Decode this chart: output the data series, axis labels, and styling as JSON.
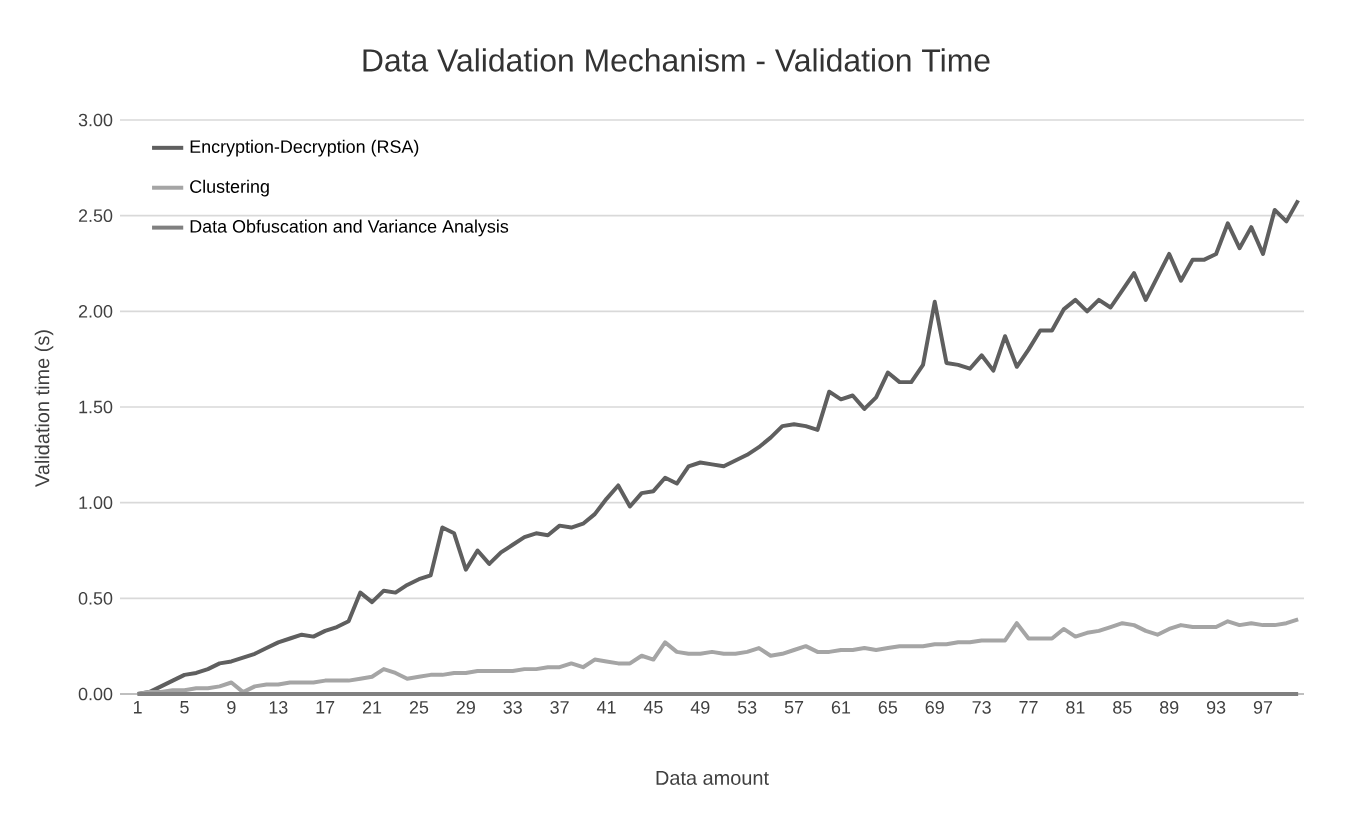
{
  "chart_data": {
    "type": "line",
    "title": "Data Validation Mechanism - Validation Time",
    "xlabel": "Data amount",
    "ylabel": "Validation time (s)",
    "categories": [
      "1",
      null,
      null,
      null,
      "5",
      null,
      null,
      null,
      "9",
      null,
      null,
      null,
      "13",
      null,
      null,
      null,
      "17",
      null,
      null,
      null,
      "21",
      null,
      null,
      null,
      "25",
      null,
      null,
      null,
      "29",
      null,
      null,
      null,
      "33",
      null,
      null,
      null,
      "37",
      null,
      null,
      null,
      "41",
      null,
      null,
      null,
      "45",
      null,
      null,
      null,
      "49",
      null,
      null,
      null,
      "53",
      null,
      null,
      null,
      "57",
      null,
      null,
      null,
      "61",
      null,
      null,
      null,
      "65",
      null,
      null,
      null,
      "69",
      null,
      null,
      null,
      "73",
      null,
      null,
      null,
      "77",
      null,
      null,
      null,
      "81",
      null,
      null,
      null,
      "85",
      null,
      null,
      null,
      "89",
      null,
      null,
      null,
      "93",
      null,
      null,
      null,
      "97",
      null,
      null,
      null
    ],
    "series": [
      {
        "name": "Encryption-Decryption (RSA)",
        "color": "#5f5f5f",
        "values": [
          0,
          0.01,
          0.04,
          0.07,
          0.1,
          0.11,
          0.13,
          0.16,
          0.17,
          0.19,
          0.21,
          0.24,
          0.27,
          0.29,
          0.31,
          0.3,
          0.33,
          0.35,
          0.38,
          0.53,
          0.48,
          0.54,
          0.53,
          0.57,
          0.6,
          0.62,
          0.87,
          0.84,
          0.65,
          0.75,
          0.68,
          0.74,
          0.78,
          0.82,
          0.84,
          0.83,
          0.88,
          0.87,
          0.89,
          0.94,
          1.02,
          1.09,
          0.98,
          1.05,
          1.06,
          1.13,
          1.1,
          1.19,
          1.21,
          1.2,
          1.19,
          1.22,
          1.25,
          1.29,
          1.34,
          1.4,
          1.41,
          1.4,
          1.38,
          1.58,
          1.54,
          1.56,
          1.49,
          1.55,
          1.68,
          1.63,
          1.63,
          1.72,
          2.05,
          1.73,
          1.72,
          1.7,
          1.77,
          1.69,
          1.87,
          1.71,
          1.8,
          1.9,
          1.9,
          2.01,
          2.06,
          2.0,
          2.06,
          2.02,
          2.11,
          2.2,
          2.06,
          2.18,
          2.3,
          2.16,
          2.27,
          2.27,
          2.3,
          2.46,
          2.33,
          2.44,
          2.3,
          2.53,
          2.47,
          2.58
        ]
      },
      {
        "name": "Clustering",
        "color": "#a5a5a5",
        "values": [
          0,
          0.01,
          0.01,
          0.02,
          0.02,
          0.03,
          0.03,
          0.04,
          0.06,
          0.01,
          0.04,
          0.05,
          0.05,
          0.06,
          0.06,
          0.06,
          0.07,
          0.07,
          0.07,
          0.08,
          0.09,
          0.13,
          0.11,
          0.08,
          0.09,
          0.1,
          0.1,
          0.11,
          0.11,
          0.12,
          0.12,
          0.12,
          0.12,
          0.13,
          0.13,
          0.14,
          0.14,
          0.16,
          0.14,
          0.18,
          0.17,
          0.16,
          0.16,
          0.2,
          0.18,
          0.27,
          0.22,
          0.21,
          0.21,
          0.22,
          0.21,
          0.21,
          0.22,
          0.24,
          0.2,
          0.21,
          0.23,
          0.25,
          0.22,
          0.22,
          0.23,
          0.23,
          0.24,
          0.23,
          0.24,
          0.25,
          0.25,
          0.25,
          0.26,
          0.26,
          0.27,
          0.27,
          0.28,
          0.28,
          0.28,
          0.37,
          0.29,
          0.29,
          0.29,
          0.34,
          0.3,
          0.32,
          0.33,
          0.35,
          0.37,
          0.36,
          0.33,
          0.31,
          0.34,
          0.36,
          0.35,
          0.35,
          0.35,
          0.38,
          0.36,
          0.37,
          0.36,
          0.36,
          0.37,
          0.39
        ]
      },
      {
        "name": "Data Obfuscation and Variance Analysis",
        "color": "#808080",
        "values": [
          0,
          0,
          0,
          0,
          0,
          0,
          0,
          0,
          0,
          0,
          0,
          0,
          0,
          0,
          0,
          0,
          0,
          0,
          0,
          0,
          0,
          0,
          0,
          0,
          0,
          0,
          0,
          0,
          0,
          0,
          0,
          0,
          0,
          0,
          0,
          0,
          0,
          0,
          0,
          0,
          0,
          0,
          0,
          0,
          0,
          0,
          0,
          0,
          0,
          0,
          0,
          0,
          0,
          0,
          0,
          0,
          0,
          0,
          0,
          0,
          0,
          0,
          0,
          0,
          0,
          0,
          0,
          0,
          0,
          0,
          0,
          0,
          0,
          0,
          0,
          0,
          0,
          0,
          0,
          0,
          0,
          0,
          0,
          0,
          0,
          0,
          0,
          0,
          0,
          0,
          0,
          0,
          0,
          0,
          0,
          0,
          0,
          0,
          0,
          0
        ]
      }
    ],
    "ylim": [
      0,
      3
    ],
    "yticks": [
      {
        "value": 0,
        "label": "0.00"
      },
      {
        "value": 0.5,
        "label": "0.50"
      },
      {
        "value": 1,
        "label": "1.00"
      },
      {
        "value": 1.5,
        "label": "1.50"
      },
      {
        "value": 2,
        "label": "2.00"
      },
      {
        "value": 2.5,
        "label": "2.50"
      },
      {
        "value": 3,
        "label": "3.00"
      }
    ],
    "grid": "y",
    "legend": "top left"
  }
}
